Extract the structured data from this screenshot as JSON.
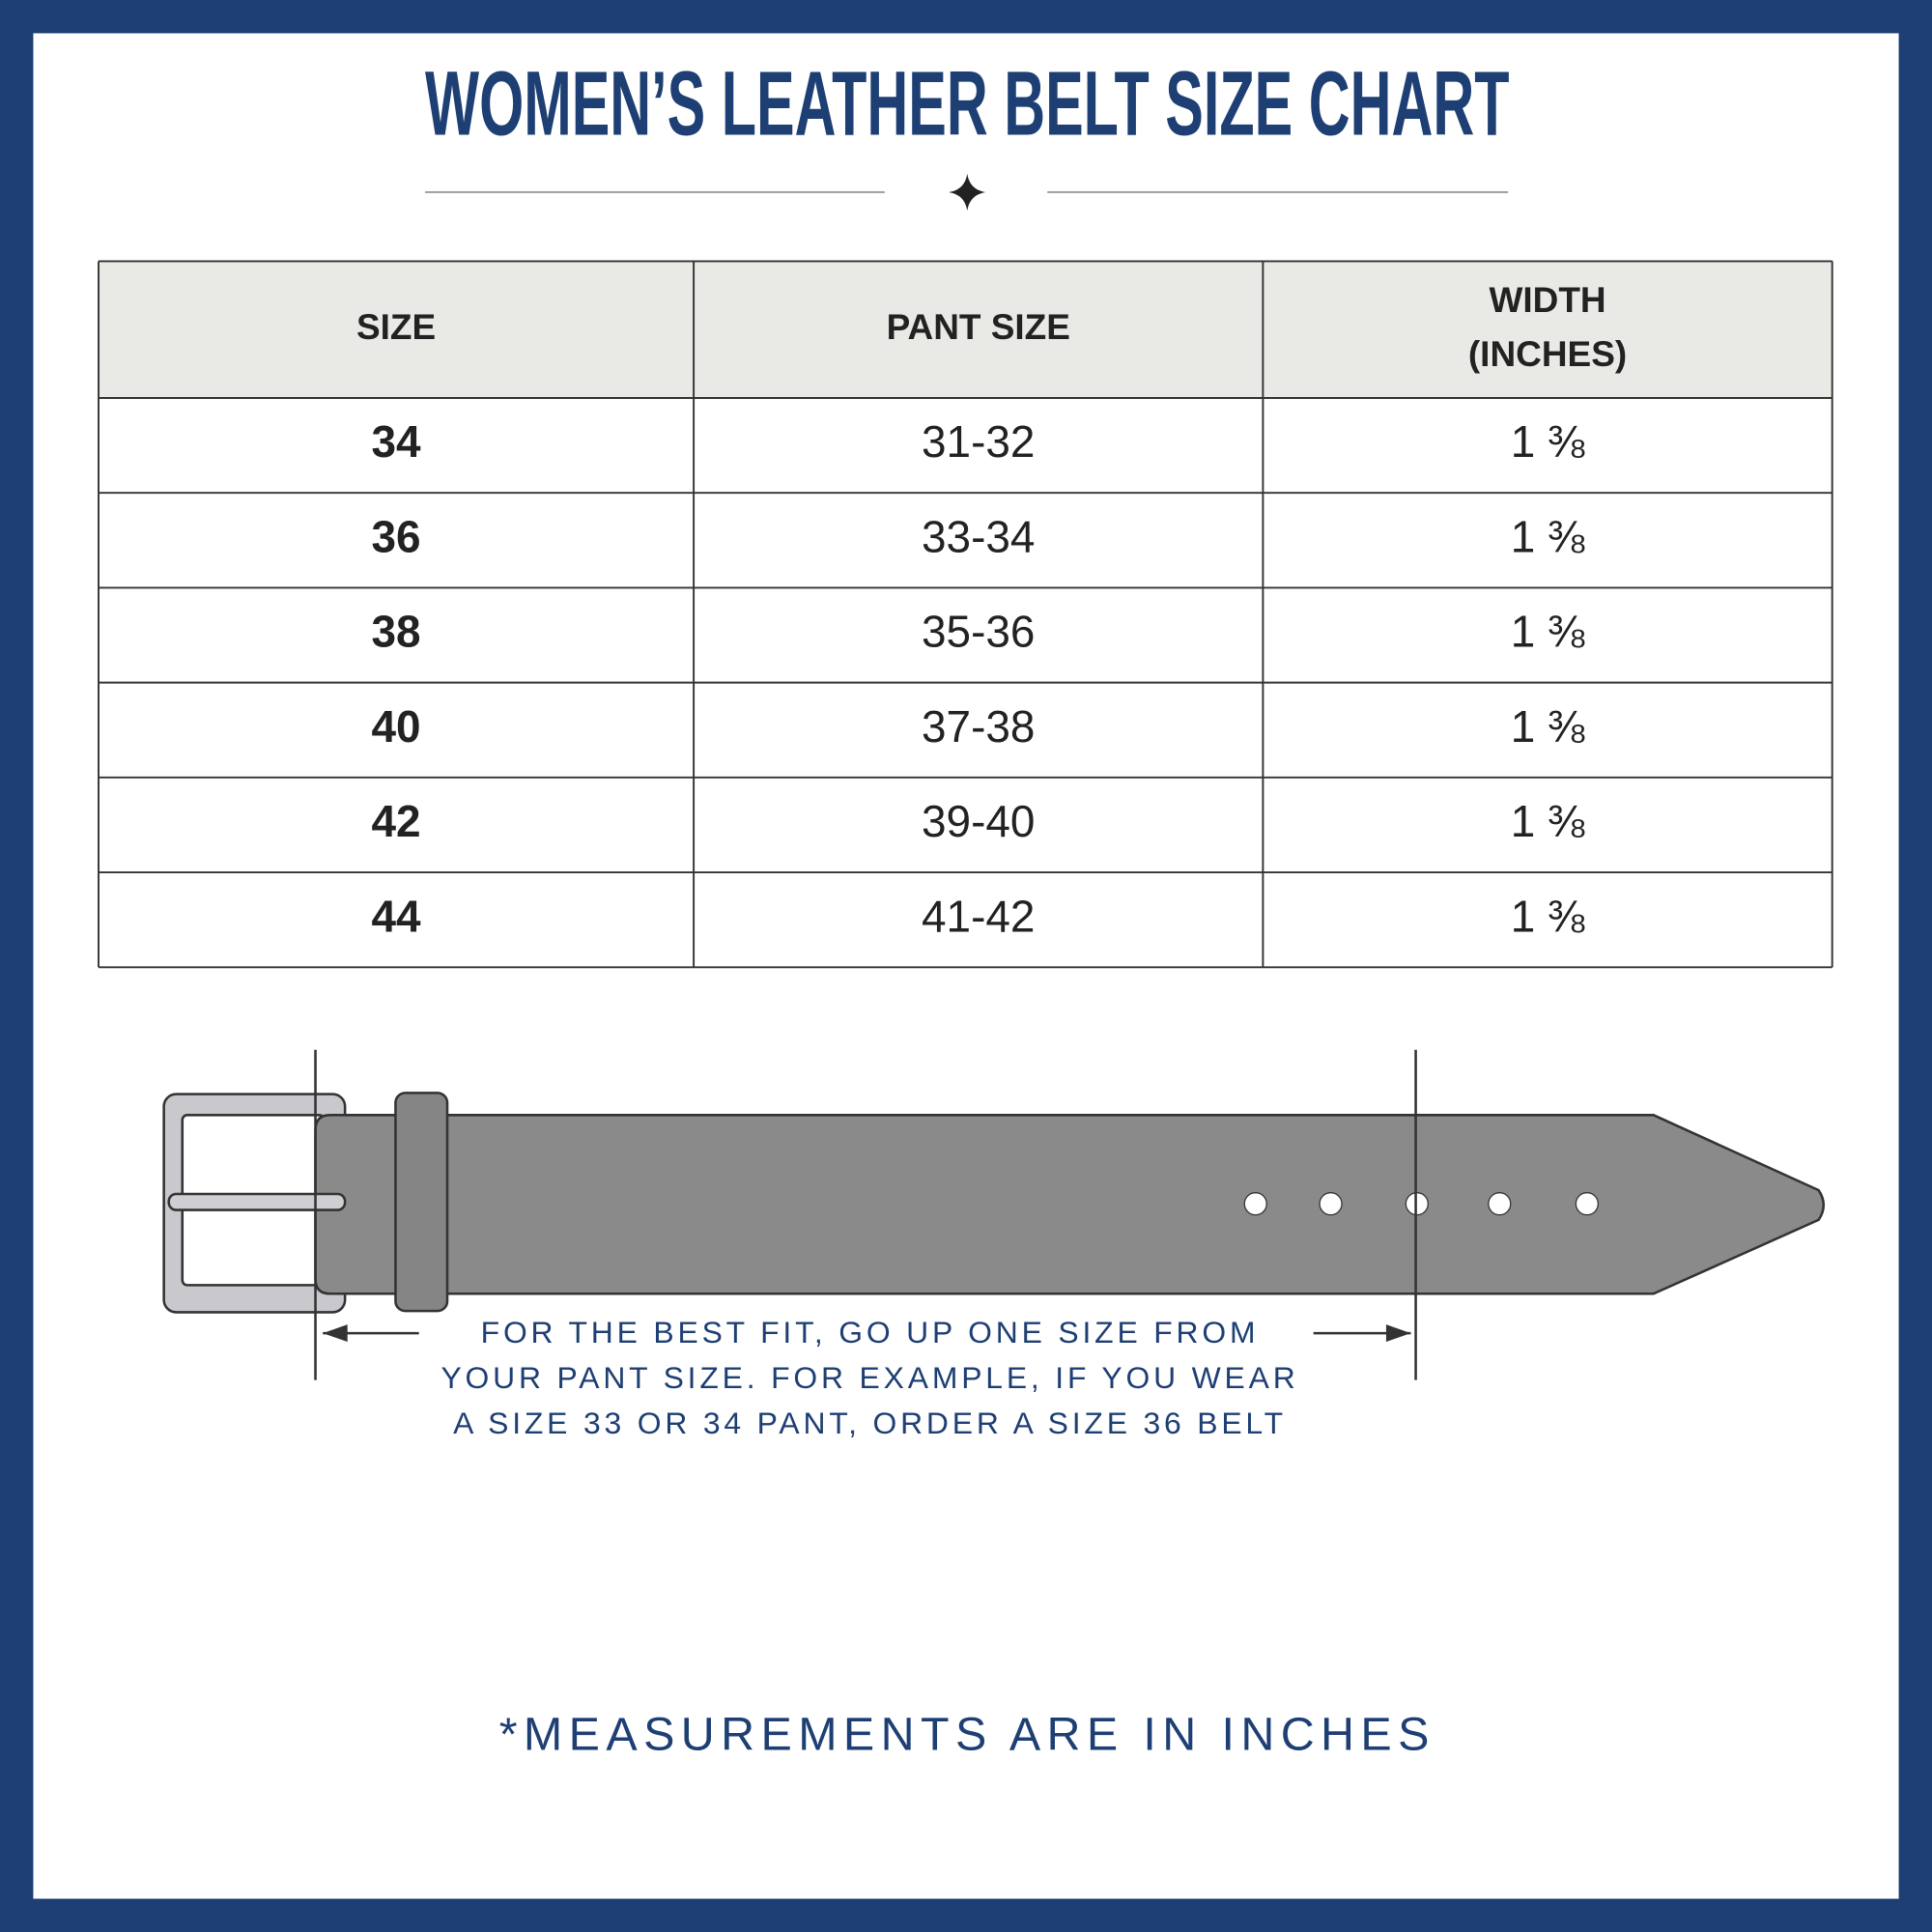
{
  "header": {
    "title": "WOMEN’S LEATHER BELT SIZE CHART"
  },
  "table": {
    "columns": [
      "SIZE",
      "PANT SIZE",
      [
        "WIDTH",
        "(INCHES)"
      ]
    ],
    "rows": [
      [
        "34",
        "31-32",
        "1 ⅜"
      ],
      [
        "36",
        "33-34",
        "1 ⅜"
      ],
      [
        "38",
        "35-36",
        "1 ⅜"
      ],
      [
        "40",
        "37-38",
        "1 ⅜"
      ],
      [
        "42",
        "39-40",
        "1 ⅜"
      ],
      [
        "44",
        "41-42",
        "1 ⅜"
      ]
    ]
  },
  "note": [
    "FOR THE BEST FIT, GO UP ONE SIZE FROM",
    "YOUR PANT SIZE. FOR EXAMPLE, IF YOU WEAR",
    "A SIZE 33 OR 34 PANT, ORDER A SIZE 36 BELT"
  ],
  "footer": "*MEASUREMENTS ARE IN INCHES"
}
